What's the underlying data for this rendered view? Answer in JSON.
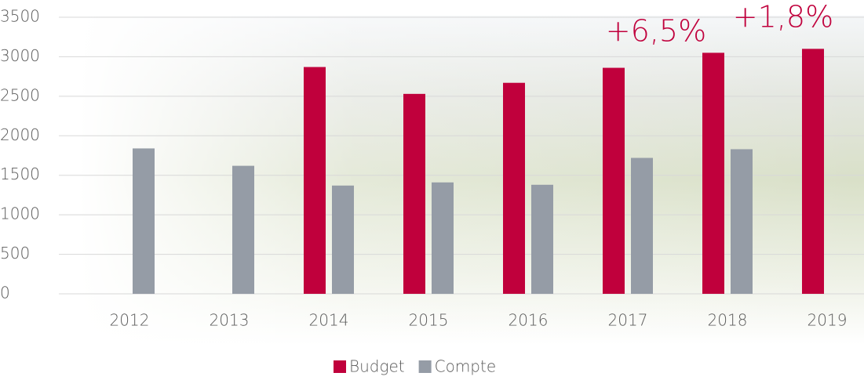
{
  "chart_data": {
    "type": "bar",
    "categories": [
      "2012",
      "2013",
      "2014",
      "2015",
      "2016",
      "2017",
      "2018",
      "2019"
    ],
    "series": [
      {
        "name": "Budget",
        "color": "#c0003c",
        "values": [
          null,
          null,
          2870,
          2530,
          2670,
          2860,
          3050,
          3100
        ]
      },
      {
        "name": "Compte",
        "color": "#959ca6",
        "values": [
          1840,
          1620,
          1370,
          1410,
          1380,
          1720,
          1830,
          null
        ]
      }
    ],
    "annotations": [
      "+6,5%",
      "+1,8%"
    ],
    "ylim": [
      0,
      3500
    ],
    "yticks": [
      0,
      500,
      1000,
      1500,
      2000,
      2500,
      3000,
      3500
    ],
    "grid": true
  }
}
